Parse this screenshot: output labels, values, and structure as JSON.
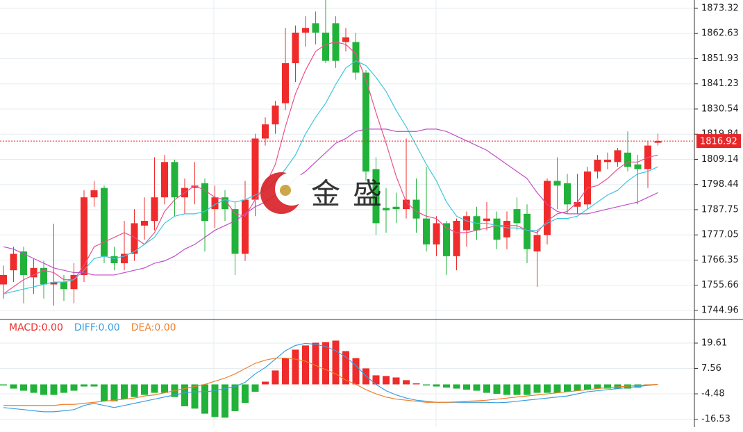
{
  "chart_data": [
    {
      "type": "candlestick",
      "open": [
        1756,
        1762,
        1770,
        1759,
        1763,
        1756,
        1757,
        1754,
        1760,
        1793,
        1797,
        1768,
        1765,
        1769,
        1781,
        1783,
        1793,
        1808,
        1793,
        1797,
        1799,
        1788,
        1793,
        1788,
        1769,
        1792,
        1818,
        1824,
        1833,
        1850,
        1863,
        1867,
        1863,
        1867,
        1859,
        1859,
        1846,
        1805,
        1788.5,
        1789,
        1788,
        1792,
        1784,
        1773,
        1782,
        1768,
        1779,
        1785,
        1783,
        1784,
        1776,
        1788,
        1786,
        1770,
        1777,
        1800,
        1799,
        1789,
        1790,
        1804,
        1808,
        1808,
        1812,
        1807,
        1805,
        1816.2
      ],
      "high": [
        1764,
        1772,
        1772,
        1767,
        1766,
        1781.8,
        1760,
        1765,
        1796,
        1800,
        1798,
        1772,
        1783,
        1788,
        1793,
        1810,
        1811,
        1809,
        1801,
        1808,
        1801,
        1798,
        1796,
        1791,
        1800,
        1820,
        1827,
        1834,
        1865,
        1866,
        1870,
        1872,
        1877,
        1870,
        1865,
        1863,
        1847,
        1810,
        1797,
        1795,
        1818,
        1801,
        1806,
        1785,
        1783,
        1784,
        1787,
        1789,
        1791,
        1787,
        1787,
        1793,
        1790,
        1779,
        1801,
        1810,
        1803,
        1803,
        1806,
        1811,
        1812,
        1814,
        1821,
        1811,
        1817,
        1820
      ],
      "low": [
        1750,
        1757,
        1748,
        1752,
        1750,
        1747,
        1749,
        1748,
        1757,
        1789,
        1765,
        1762,
        1762,
        1766,
        1775,
        1779,
        1790,
        1785,
        1786,
        1790,
        1770,
        1780,
        1783,
        1760,
        1766,
        1785,
        1815,
        1820,
        1830,
        1842,
        1857,
        1858,
        1850,
        1848,
        1855,
        1843,
        1800,
        1777,
        1778,
        1782,
        1784,
        1778,
        1770,
        1768,
        1760,
        1762,
        1772,
        1775,
        1779,
        1771,
        1771,
        1779,
        1765,
        1755,
        1773,
        1788,
        1786,
        1786,
        1788,
        1801,
        1805,
        1806,
        1804,
        1790,
        1797,
        1815
      ],
      "close": [
        1760,
        1769,
        1760,
        1763,
        1756,
        1757,
        1754,
        1760,
        1793,
        1796,
        1768,
        1765,
        1769,
        1782,
        1783,
        1793,
        1808,
        1793,
        1797,
        1798,
        1783,
        1793,
        1788,
        1769,
        1792,
        1818,
        1824,
        1832,
        1850,
        1863,
        1865,
        1863,
        1851,
        1851,
        1861,
        1846,
        1804,
        1782,
        1787.5,
        1788,
        1792,
        1784,
        1773,
        1782,
        1768,
        1783,
        1785,
        1779,
        1784,
        1775,
        1783,
        1782,
        1771,
        1777,
        1800,
        1798,
        1790,
        1791,
        1804,
        1809,
        1809,
        1813,
        1806,
        1805,
        1815,
        1816.92
      ],
      "up_color": "#ef2b2b",
      "down_color": "#21b23a",
      "series": [
        {
          "color": "#e9508a",
          "values": [
            1752,
            1755,
            1758,
            1760,
            1762,
            1761,
            1758,
            1758,
            1764,
            1772,
            1774,
            1776,
            1778,
            1776,
            1773,
            1778,
            1787,
            1792,
            1795,
            1798,
            1796,
            1793,
            1792,
            1786,
            1785,
            1792,
            1798,
            1807,
            1823,
            1837,
            1847,
            1855,
            1858,
            1859,
            1858,
            1854,
            1843,
            1829,
            1816,
            1802,
            1791,
            1787,
            1785,
            1784,
            1780,
            1778,
            1778,
            1779,
            1780,
            1781,
            1781,
            1781,
            1779,
            1778,
            1783,
            1786,
            1787,
            1791,
            1797,
            1798,
            1801,
            1805,
            1808,
            1808,
            1810,
            1811
          ]
        },
        {
          "color": "#3cc6dc",
          "values": [
            1752,
            1753,
            1754,
            1755,
            1756,
            1757,
            1757,
            1758,
            1762,
            1767,
            1768,
            1767,
            1768,
            1770,
            1773,
            1776,
            1782,
            1785,
            1786,
            1786,
            1787,
            1790,
            1792,
            1791,
            1792,
            1794,
            1796,
            1800,
            1805,
            1811,
            1820,
            1827,
            1833,
            1841,
            1848,
            1851,
            1849,
            1844,
            1838,
            1830,
            1823,
            1815,
            1807,
            1800,
            1791,
            1785,
            1783,
            1782,
            1782,
            1781,
            1780,
            1780,
            1779,
            1779,
            1782,
            1784,
            1784,
            1785,
            1788,
            1791,
            1794,
            1796,
            1800,
            1803,
            1804,
            1806
          ]
        },
        {
          "color": "#c04ec8",
          "values": [
            1772,
            1771,
            1769,
            1767,
            1765,
            1763,
            1762,
            1761,
            1761,
            1760,
            1760,
            1760,
            1761,
            1762,
            1763,
            1765,
            1766,
            1768,
            1771,
            1773,
            1776,
            1779,
            1781,
            1783,
            1786,
            1789,
            1791,
            1794,
            1797,
            1801,
            1804,
            1808,
            1812,
            1816,
            1818,
            1821,
            1822,
            1822,
            1822,
            1821,
            1821,
            1821,
            1822,
            1822,
            1821,
            1819,
            1817,
            1815,
            1813,
            1810,
            1807,
            1804,
            1801,
            1795,
            1790,
            1787,
            1786,
            1786,
            1786,
            1787,
            1788,
            1789,
            1790,
            1791,
            1793,
            1795
          ]
        }
      ],
      "last_price": 1816.92,
      "last_price_color": "#e8262a",
      "ylim": [
        1741.1,
        1876.86
      ],
      "yticks": [
        1873.32,
        1862.63,
        1851.93,
        1841.23,
        1830.54,
        1819.84,
        1809.14,
        1798.44,
        1787.75,
        1777.05,
        1766.35,
        1755.66,
        1744.96
      ],
      "grid": true,
      "watermark": "金盛"
    },
    {
      "type": "macd",
      "series": [
        {
          "name": "MACD:0.00",
          "color": "#ef2b2b",
          "down_color": "#21b23a",
          "kind": "bar",
          "values": [
            -0.5,
            -2,
            -3,
            -4,
            -5,
            -5,
            -4,
            -3,
            -1,
            -1,
            -8,
            -8,
            -7,
            -6,
            -5,
            -4,
            -4,
            -6,
            -10.4,
            -11.5,
            -13.9,
            -15.5,
            -15.8,
            -12.7,
            -8.8,
            -3.5,
            1.3,
            6.6,
            12.5,
            16.5,
            18.5,
            19.8,
            20.1,
            20.8,
            15.8,
            12.5,
            7.6,
            4.3,
            4,
            3.3,
            2,
            0.5,
            -0.5,
            -1,
            -1.5,
            -2,
            -2.5,
            -3,
            -4,
            -4.5,
            -5,
            -5,
            -5,
            -4,
            -4,
            -4,
            -3.5,
            -3,
            -2.5,
            -2,
            -2,
            -2,
            -2,
            -1.5,
            -0.5,
            0
          ]
        },
        {
          "name": "DIFF:0.00",
          "color": "#3a9ee0",
          "kind": "line",
          "values": [
            -11,
            -11.5,
            -12,
            -12.5,
            -13,
            -13,
            -12.5,
            -12,
            -10,
            -9,
            -10,
            -11,
            -10,
            -9,
            -8,
            -7,
            -6,
            -5,
            -4,
            -3.5,
            -3.5,
            -3,
            -2,
            -1,
            1,
            5,
            8,
            12,
            16,
            18.5,
            19.5,
            19,
            18,
            16,
            13,
            9,
            4,
            0,
            -3,
            -5,
            -6.5,
            -7.5,
            -8,
            -8.5,
            -8.5,
            -8.5,
            -8.5,
            -8.5,
            -8.5,
            -8.7,
            -8.5,
            -8,
            -7.5,
            -7,
            -6.5,
            -6,
            -5.5,
            -4.5,
            -3.5,
            -3,
            -2.5,
            -2,
            -1.5,
            -1,
            -0.5,
            0
          ]
        },
        {
          "name": "DEA:0.00",
          "color": "#f07f2a",
          "kind": "line",
          "values": [
            -10,
            -10,
            -10,
            -10,
            -10,
            -10,
            -9.5,
            -9.5,
            -9,
            -8.5,
            -8,
            -7.5,
            -7,
            -6.5,
            -5.5,
            -5,
            -4,
            -3,
            -2,
            -1,
            0,
            1.5,
            3,
            5,
            7.5,
            10,
            11.5,
            12.5,
            12.5,
            12,
            11,
            9,
            7,
            5,
            2,
            0,
            -2.5,
            -4.5,
            -6,
            -7,
            -7.5,
            -8,
            -8.5,
            -8.5,
            -8.5,
            -8.3,
            -8,
            -7.8,
            -7.5,
            -7,
            -6.5,
            -6,
            -5.5,
            -5,
            -4.5,
            -4,
            -3.5,
            -3,
            -2.5,
            -2,
            -1.5,
            -1.2,
            -0.8,
            -0.5,
            -0.2,
            0
          ]
        }
      ],
      "ylim": [
        -20.3,
        30.5
      ],
      "yticks": [
        19.61,
        7.56,
        -4.48,
        -16.53
      ],
      "grid": true
    }
  ]
}
